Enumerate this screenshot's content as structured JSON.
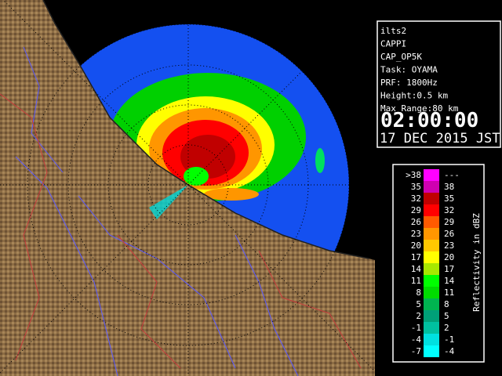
{
  "info": {
    "lines": [
      "ilts2",
      "CAPPI",
      "CAP_OP5K",
      "Task: OYAMA",
      "PRF: 1800Hz",
      "Height:0.5 km",
      "Max Range:80 km"
    ],
    "time": "02:00:00",
    "date": "17 DEC 2015 JST"
  },
  "legend": {
    "title": "Reflectivity in dBZ",
    "rows": [
      {
        "low": ">38",
        "high": "---",
        "color": "#ff00ff"
      },
      {
        "low": "35",
        "high": "38",
        "color": "#d000b0"
      },
      {
        "low": "32",
        "high": "35",
        "color": "#c00000"
      },
      {
        "low": "29",
        "high": "32",
        "color": "#ff0000"
      },
      {
        "low": "26",
        "high": "29",
        "color": "#ff5a00"
      },
      {
        "low": "23",
        "high": "26",
        "color": "#ff9600"
      },
      {
        "low": "20",
        "high": "23",
        "color": "#ffc800"
      },
      {
        "low": "17",
        "high": "20",
        "color": "#ffff00"
      },
      {
        "low": "14",
        "high": "17",
        "color": "#a8e800"
      },
      {
        "low": "11",
        "high": "14",
        "color": "#00ff00"
      },
      {
        "low": "8",
        "high": "11",
        "color": "#00dc00"
      },
      {
        "low": "5",
        "high": "8",
        "color": "#00b450"
      },
      {
        "low": "2",
        "high": "5",
        "color": "#00a078"
      },
      {
        "low": "-1",
        "high": "2",
        "color": "#00c0a0"
      },
      {
        "low": "-4",
        "high": "-1",
        "color": "#00e0e0"
      },
      {
        "low": "-7",
        "high": "-4",
        "color": "#00ffff"
      }
    ]
  }
}
